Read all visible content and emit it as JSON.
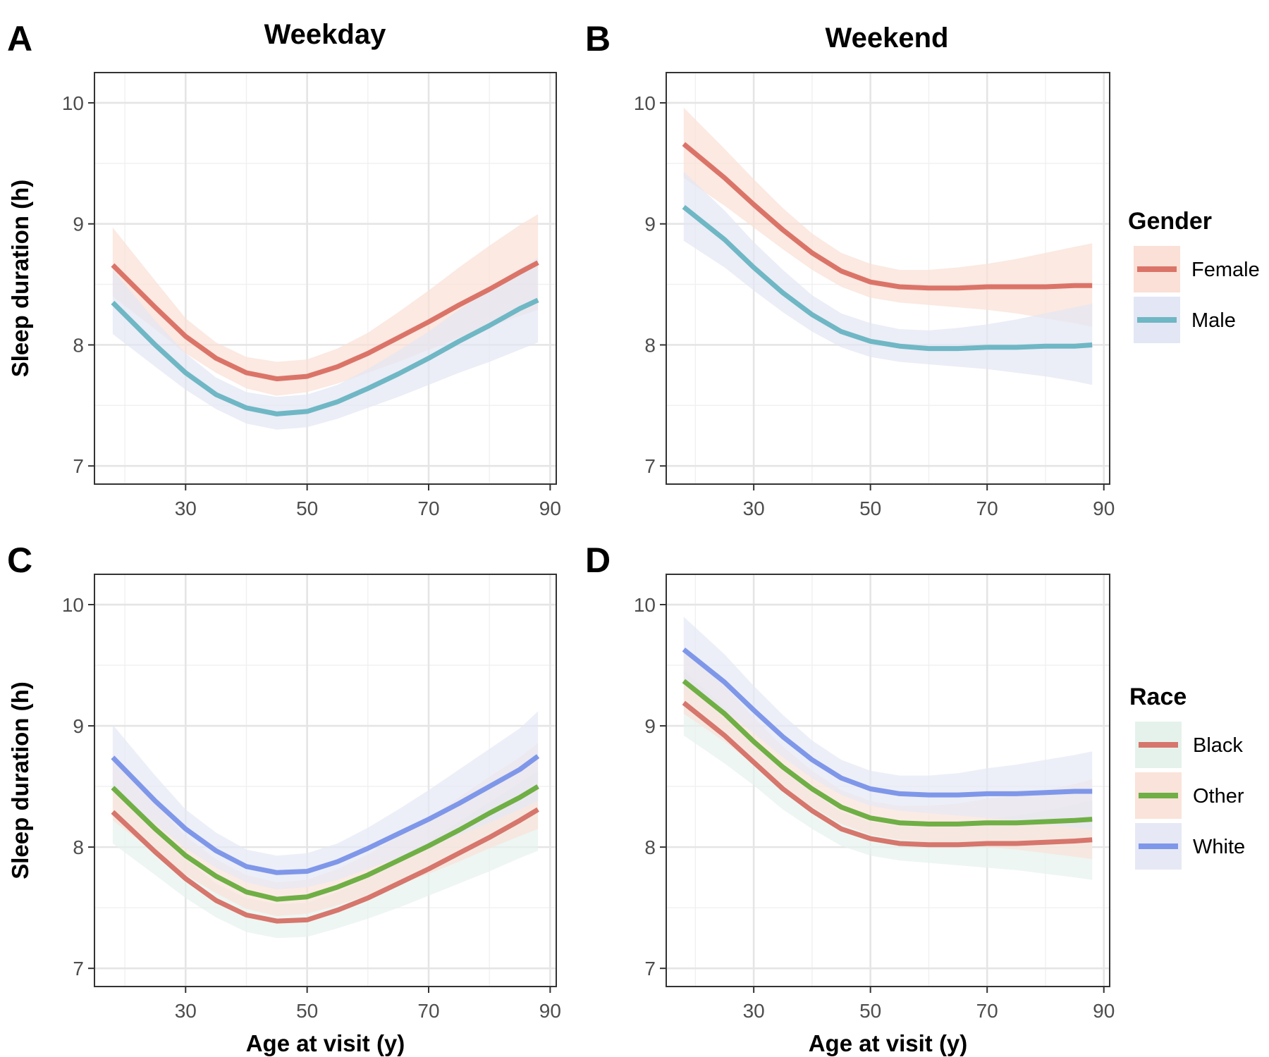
{
  "chart_data": [
    {
      "panel": "A",
      "title": "Weekday",
      "type": "line",
      "xlabel": "",
      "ylabel": "Sleep duration (h)",
      "xlim": [
        15,
        91
      ],
      "ylim": [
        6.85,
        10.25
      ],
      "xticks": [
        30,
        50,
        70,
        90
      ],
      "yticks": [
        7,
        8,
        9,
        10
      ],
      "grid": true,
      "legend": "Gender",
      "series": [
        {
          "name": "Female",
          "color": "#DB7468",
          "band_color": "#FAE0D6",
          "x": [
            18,
            25,
            30,
            35,
            40,
            45,
            50,
            55,
            60,
            65,
            70,
            75,
            80,
            85,
            88
          ],
          "y": [
            8.66,
            8.31,
            8.07,
            7.89,
            7.77,
            7.72,
            7.74,
            7.82,
            7.93,
            8.06,
            8.19,
            8.33,
            8.46,
            8.6,
            8.68
          ],
          "lower": [
            8.4,
            8.13,
            7.93,
            7.77,
            7.64,
            7.58,
            7.61,
            7.68,
            7.77,
            7.86,
            7.96,
            8.06,
            8.15,
            8.24,
            8.29
          ],
          "upper": [
            8.97,
            8.53,
            8.22,
            8.02,
            7.9,
            7.86,
            7.88,
            7.97,
            8.1,
            8.27,
            8.45,
            8.64,
            8.82,
            8.99,
            9.08
          ]
        },
        {
          "name": "Male",
          "color": "#6FB7C4",
          "band_color": "#E3E6F4",
          "x": [
            18,
            25,
            30,
            35,
            40,
            45,
            50,
            55,
            60,
            65,
            70,
            75,
            80,
            85,
            88
          ],
          "y": [
            8.35,
            8.0,
            7.77,
            7.59,
            7.48,
            7.43,
            7.45,
            7.53,
            7.64,
            7.76,
            7.89,
            8.03,
            8.16,
            8.3,
            8.37
          ],
          "lower": [
            8.09,
            7.82,
            7.63,
            7.47,
            7.35,
            7.3,
            7.32,
            7.39,
            7.48,
            7.57,
            7.67,
            7.77,
            7.86,
            7.96,
            8.02
          ],
          "upper": [
            8.62,
            8.2,
            7.93,
            7.73,
            7.61,
            7.57,
            7.59,
            7.67,
            7.8,
            7.95,
            8.11,
            8.29,
            8.46,
            8.63,
            8.72
          ]
        }
      ]
    },
    {
      "panel": "B",
      "title": "Weekend",
      "type": "line",
      "xlabel": "",
      "ylabel": "",
      "xlim": [
        15,
        91
      ],
      "ylim": [
        6.85,
        10.25
      ],
      "xticks": [
        30,
        50,
        70,
        90
      ],
      "yticks": [
        7,
        8,
        9,
        10
      ],
      "grid": true,
      "legend": "Gender",
      "series": [
        {
          "name": "Female",
          "color": "#DB7468",
          "band_color": "#FAE0D6",
          "x": [
            18,
            25,
            30,
            35,
            40,
            45,
            50,
            55,
            60,
            65,
            70,
            75,
            80,
            85,
            88
          ],
          "y": [
            9.66,
            9.38,
            9.16,
            8.95,
            8.76,
            8.61,
            8.52,
            8.48,
            8.47,
            8.47,
            8.48,
            8.48,
            8.48,
            8.49,
            8.49
          ],
          "lower": [
            9.38,
            9.15,
            8.97,
            8.79,
            8.62,
            8.48,
            8.39,
            8.35,
            8.33,
            8.31,
            8.29,
            8.26,
            8.22,
            8.18,
            8.15
          ],
          "upper": [
            9.96,
            9.62,
            9.37,
            9.13,
            8.92,
            8.76,
            8.67,
            8.62,
            8.62,
            8.64,
            8.67,
            8.71,
            8.76,
            8.81,
            8.84
          ]
        },
        {
          "name": "Male",
          "color": "#6FB7C4",
          "band_color": "#E3E6F4",
          "x": [
            18,
            25,
            30,
            35,
            40,
            45,
            50,
            55,
            60,
            65,
            70,
            75,
            80,
            85,
            88
          ],
          "y": [
            9.14,
            8.87,
            8.64,
            8.43,
            8.25,
            8.11,
            8.03,
            7.99,
            7.97,
            7.97,
            7.98,
            7.98,
            7.99,
            7.99,
            8.0
          ],
          "lower": [
            8.86,
            8.64,
            8.45,
            8.27,
            8.11,
            7.98,
            7.9,
            7.86,
            7.84,
            7.82,
            7.8,
            7.77,
            7.74,
            7.7,
            7.67
          ],
          "upper": [
            9.43,
            9.11,
            8.85,
            8.62,
            8.41,
            8.26,
            8.18,
            8.13,
            8.12,
            8.14,
            8.17,
            8.21,
            8.26,
            8.31,
            8.34
          ]
        }
      ]
    },
    {
      "panel": "C",
      "title": "",
      "type": "line",
      "xlabel": "Age at visit (y)",
      "ylabel": "Sleep duration (h)",
      "xlim": [
        15,
        91
      ],
      "ylim": [
        6.85,
        10.25
      ],
      "xticks": [
        30,
        50,
        70,
        90
      ],
      "yticks": [
        7,
        8,
        9,
        10
      ],
      "grid": true,
      "legend": "Race",
      "series": [
        {
          "name": "Black",
          "color": "#D6766C",
          "band_color": "#E5F2EC",
          "x": [
            18,
            25,
            30,
            35,
            40,
            45,
            50,
            55,
            60,
            65,
            70,
            75,
            80,
            85,
            88
          ],
          "y": [
            8.29,
            7.96,
            7.74,
            7.56,
            7.44,
            7.39,
            7.4,
            7.48,
            7.58,
            7.7,
            7.82,
            7.95,
            8.08,
            8.22,
            8.31
          ],
          "lower": [
            8.03,
            7.77,
            7.58,
            7.42,
            7.3,
            7.25,
            7.26,
            7.33,
            7.41,
            7.5,
            7.6,
            7.7,
            7.8,
            7.91,
            7.97
          ],
          "upper": [
            8.55,
            8.16,
            7.9,
            7.7,
            7.58,
            7.53,
            7.54,
            7.63,
            7.75,
            7.9,
            8.05,
            8.21,
            8.37,
            8.53,
            8.63
          ]
        },
        {
          "name": "Other",
          "color": "#6FAF45",
          "band_color": "#FAE3DA",
          "x": [
            18,
            25,
            30,
            35,
            40,
            45,
            50,
            55,
            60,
            65,
            70,
            75,
            80,
            85,
            88
          ],
          "y": [
            8.49,
            8.15,
            7.93,
            7.76,
            7.63,
            7.57,
            7.59,
            7.67,
            7.77,
            7.89,
            8.01,
            8.14,
            8.28,
            8.41,
            8.5
          ],
          "lower": [
            8.22,
            7.95,
            7.77,
            7.62,
            7.49,
            7.43,
            7.45,
            7.52,
            7.6,
            7.69,
            7.78,
            7.88,
            7.99,
            8.09,
            8.15
          ],
          "upper": [
            8.77,
            8.36,
            8.09,
            7.9,
            7.77,
            7.71,
            7.73,
            7.82,
            7.94,
            8.09,
            8.24,
            8.41,
            8.58,
            8.74,
            8.86
          ]
        },
        {
          "name": "White",
          "color": "#7F97E9",
          "band_color": "#E6E8F5",
          "x": [
            18,
            25,
            30,
            35,
            40,
            45,
            50,
            55,
            60,
            65,
            70,
            75,
            80,
            85,
            88
          ],
          "y": [
            8.74,
            8.38,
            8.15,
            7.97,
            7.84,
            7.79,
            7.8,
            7.88,
            7.99,
            8.11,
            8.23,
            8.36,
            8.5,
            8.64,
            8.75
          ],
          "lower": [
            8.48,
            8.19,
            7.99,
            7.83,
            7.71,
            7.65,
            7.67,
            7.73,
            7.82,
            7.91,
            8.0,
            8.1,
            8.2,
            8.31,
            8.38
          ],
          "upper": [
            9.01,
            8.59,
            8.31,
            8.12,
            7.98,
            7.93,
            7.95,
            8.03,
            8.16,
            8.31,
            8.47,
            8.64,
            8.81,
            8.98,
            9.12
          ]
        }
      ]
    },
    {
      "panel": "D",
      "title": "",
      "type": "line",
      "xlabel": "Age at visit (y)",
      "ylabel": "",
      "xlim": [
        15,
        91
      ],
      "ylim": [
        6.85,
        10.25
      ],
      "xticks": [
        30,
        50,
        70,
        90
      ],
      "yticks": [
        7,
        8,
        9,
        10
      ],
      "grid": true,
      "legend": "Race",
      "series": [
        {
          "name": "Black",
          "color": "#D6766C",
          "band_color": "#E5F2EC",
          "x": [
            18,
            25,
            30,
            35,
            40,
            45,
            50,
            55,
            60,
            65,
            70,
            75,
            80,
            85,
            88
          ],
          "y": [
            9.19,
            8.92,
            8.7,
            8.48,
            8.3,
            8.15,
            8.07,
            8.03,
            8.02,
            8.02,
            8.03,
            8.03,
            8.04,
            8.05,
            8.06
          ],
          "lower": [
            8.92,
            8.69,
            8.51,
            8.31,
            8.15,
            8.01,
            7.93,
            7.89,
            7.87,
            7.85,
            7.83,
            7.81,
            7.78,
            7.75,
            7.73
          ],
          "upper": [
            9.46,
            9.15,
            8.89,
            8.65,
            8.45,
            8.29,
            8.21,
            8.17,
            8.17,
            8.19,
            8.23,
            8.26,
            8.3,
            8.35,
            8.39
          ]
        },
        {
          "name": "Other",
          "color": "#6FAF45",
          "band_color": "#FAE3DA",
          "x": [
            18,
            25,
            30,
            35,
            40,
            45,
            50,
            55,
            60,
            65,
            70,
            75,
            80,
            85,
            88
          ],
          "y": [
            9.37,
            9.1,
            8.87,
            8.66,
            8.48,
            8.33,
            8.24,
            8.2,
            8.19,
            8.19,
            8.2,
            8.2,
            8.21,
            8.22,
            8.23
          ],
          "lower": [
            9.1,
            8.87,
            8.68,
            8.49,
            8.33,
            8.19,
            8.1,
            8.06,
            8.04,
            8.02,
            8.0,
            7.98,
            7.95,
            7.92,
            7.9
          ],
          "upper": [
            9.65,
            9.33,
            9.07,
            8.83,
            8.63,
            8.47,
            8.38,
            8.34,
            8.34,
            8.36,
            8.4,
            8.43,
            8.47,
            8.52,
            8.56
          ]
        },
        {
          "name": "White",
          "color": "#7F97E9",
          "band_color": "#E6E8F5",
          "x": [
            18,
            25,
            30,
            35,
            40,
            45,
            50,
            55,
            60,
            65,
            70,
            75,
            80,
            85,
            88
          ],
          "y": [
            9.63,
            9.36,
            9.13,
            8.91,
            8.72,
            8.57,
            8.48,
            8.44,
            8.43,
            8.43,
            8.44,
            8.44,
            8.45,
            8.46,
            8.46
          ],
          "lower": [
            9.36,
            9.13,
            8.94,
            8.74,
            8.57,
            8.43,
            8.34,
            8.3,
            8.28,
            8.26,
            8.24,
            8.22,
            8.19,
            8.16,
            8.14
          ],
          "upper": [
            9.9,
            9.59,
            9.33,
            9.09,
            8.88,
            8.72,
            8.63,
            8.59,
            8.59,
            8.61,
            8.65,
            8.68,
            8.72,
            8.76,
            8.79
          ]
        }
      ]
    }
  ],
  "legends": {
    "gender": {
      "title": "Gender",
      "items": [
        {
          "label": "Female",
          "color": "#DB7468",
          "fill": "#FAE0D6"
        },
        {
          "label": "Male",
          "color": "#6FB7C4",
          "fill": "#E3E6F4"
        }
      ]
    },
    "race": {
      "title": "Race",
      "items": [
        {
          "label": "Black",
          "color": "#D6766C",
          "fill": "#E5F2EC"
        },
        {
          "label": "Other",
          "color": "#6FAF45",
          "fill": "#FAE3DA"
        },
        {
          "label": "White",
          "color": "#7F97E9",
          "fill": "#E6E8F5"
        }
      ]
    }
  }
}
